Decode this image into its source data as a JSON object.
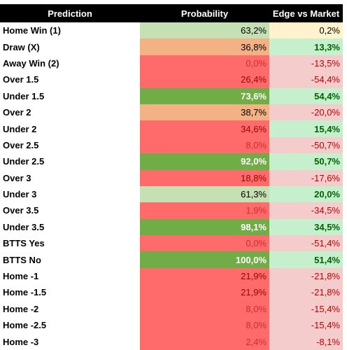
{
  "table": {
    "header": [
      "Prediction",
      "Probability",
      "Edge vs Market"
    ],
    "rows": [
      [
        "Home Win (1)",
        "63,2%",
        "0,2%"
      ],
      [
        "Draw (X)",
        "36,8%",
        "13,3%"
      ],
      [
        "Away Win (2)",
        "0,0%",
        "-13,5%"
      ],
      [
        "Over 1.5",
        "26,4%",
        "-54,4%"
      ],
      [
        "Under 1.5",
        "73,6%",
        "54,4%"
      ],
      [
        "Over 2",
        "38,7%",
        "-20,0%"
      ],
      [
        "Under 2",
        "34,6%",
        "15,4%"
      ],
      [
        "Over 2.5",
        "8,0%",
        "-50,7%"
      ],
      [
        "Under 2.5",
        "92,0%",
        "50,7%"
      ],
      [
        "Over 3",
        "18,8%",
        "-17,6%"
      ],
      [
        "Under 3",
        "61,3%",
        "20,0%"
      ],
      [
        "Over 3.5",
        "1,9%",
        "-34,5%"
      ],
      [
        "Under 3.5",
        "98,1%",
        "34,5%"
      ],
      [
        "BTTS Yes",
        "0,0%",
        "-51,4%"
      ],
      [
        "BTTS No",
        "100,0%",
        "51,4%"
      ],
      [
        "Home -1",
        "21,9%",
        "-21,8%"
      ],
      [
        "Home -1.5",
        "21,9%",
        "-21,8%"
      ],
      [
        "Home -2",
        "8,0%",
        "-15,4%"
      ],
      [
        "Home -2.5",
        "8,0%",
        "-15,4%"
      ],
      [
        "Home -3",
        "2,4%",
        "-8,1%"
      ]
    ],
    "prob_colors": [
      {
        "bg": "#c5e0b3",
        "fg": "#000000"
      },
      {
        "bg": "#f4b183",
        "fg": "#000000"
      },
      {
        "bg": "#ff6b6b",
        "fg": "#d42a2a"
      },
      {
        "bg": "#ff6b6b",
        "fg": "#9c0006"
      },
      {
        "bg": "#70ad47",
        "fg": "#ffffff",
        "bold": true
      },
      {
        "bg": "#f4b183",
        "fg": "#000000"
      },
      {
        "bg": "#ff6b6b",
        "fg": "#9c0006"
      },
      {
        "bg": "#ff6b6b",
        "fg": "#d42a2a"
      },
      {
        "bg": "#70ad47",
        "fg": "#ffffff",
        "bold": true
      },
      {
        "bg": "#ff6b6b",
        "fg": "#9c0006"
      },
      {
        "bg": "#c5e0b3",
        "fg": "#000000"
      },
      {
        "bg": "#ff6b6b",
        "fg": "#d42a2a"
      },
      {
        "bg": "#70ad47",
        "fg": "#ffffff",
        "bold": true
      },
      {
        "bg": "#ff6b6b",
        "fg": "#d42a2a"
      },
      {
        "bg": "#70ad47",
        "fg": "#ffffff",
        "bold": true
      },
      {
        "bg": "#ff6b6b",
        "fg": "#9c0006"
      },
      {
        "bg": "#ff6b6b",
        "fg": "#9c0006"
      },
      {
        "bg": "#ff6b6b",
        "fg": "#d42a2a"
      },
      {
        "bg": "#ff6b6b",
        "fg": "#d42a2a"
      },
      {
        "bg": "#ff6b6b",
        "fg": "#d42a2a"
      }
    ],
    "edge_colors": [
      {
        "bg": "#fff2cc",
        "fg": "#000000"
      },
      {
        "bg": "#c6efce",
        "fg": "#006100",
        "bold": true
      },
      {
        "bg": "#f4cccc",
        "fg": "#c00000"
      },
      {
        "bg": "#f4cccc",
        "fg": "#c00000"
      },
      {
        "bg": "#c6efce",
        "fg": "#006100",
        "bold": true
      },
      {
        "bg": "#f4cccc",
        "fg": "#c00000"
      },
      {
        "bg": "#c6efce",
        "fg": "#006100",
        "bold": true
      },
      {
        "bg": "#f4cccc",
        "fg": "#c00000"
      },
      {
        "bg": "#c6efce",
        "fg": "#006100",
        "bold": true
      },
      {
        "bg": "#f4cccc",
        "fg": "#c00000"
      },
      {
        "bg": "#c6efce",
        "fg": "#006100",
        "bold": true
      },
      {
        "bg": "#f4cccc",
        "fg": "#c00000"
      },
      {
        "bg": "#c6efce",
        "fg": "#006100",
        "bold": true
      },
      {
        "bg": "#f4cccc",
        "fg": "#c00000"
      },
      {
        "bg": "#c6efce",
        "fg": "#006100",
        "bold": true
      },
      {
        "bg": "#f4cccc",
        "fg": "#c00000"
      },
      {
        "bg": "#f4cccc",
        "fg": "#c00000"
      },
      {
        "bg": "#f4cccc",
        "fg": "#c00000"
      },
      {
        "bg": "#f4cccc",
        "fg": "#c00000"
      },
      {
        "bg": "#f4cccc",
        "fg": "#c00000"
      }
    ]
  }
}
